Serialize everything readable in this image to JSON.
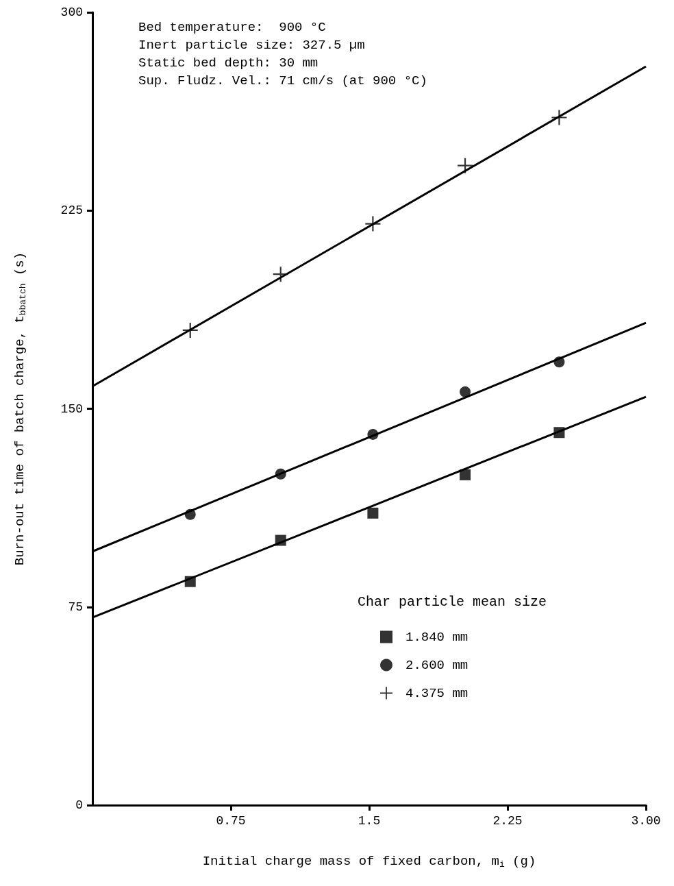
{
  "chart_data": {
    "type": "scatter",
    "xlabel": "Initial charge mass of fixed carbon, m$_{i}$ (g)",
    "ylabel": "Burn-out time of batch charge, t$_{b}$$_{batch}$ (s)",
    "legend_title": "Char particle mean size",
    "annotations": [
      "Bed temperature:  900 °C",
      "Inert particle size: 327.5 µm",
      "Static bed depth: 30 mm",
      "Sup. Fludz. Vel.: 71 cm/s (at 900 °C)"
    ],
    "xlim": [
      0,
      3
    ],
    "xticks": [
      0.75,
      1.5,
      2.25,
      {
        "value": 3,
        "label": "3.00"
      }
    ],
    "ylim": [
      0,
      300
    ],
    "yticks": [
      0,
      75,
      150,
      225,
      300
    ],
    "grid": false,
    "legend": "bottom right",
    "series": [
      {
        "name": "1.840 mm",
        "color": "#000000",
        "marker": "square",
        "x": [
          0.53,
          1.02,
          1.52,
          2.02,
          2.53
        ],
        "values": [
          84.6,
          100.2,
          110.5,
          125,
          141
        ]
      },
      {
        "name": "2.600 mm",
        "color": "#000000",
        "marker": "circle",
        "x": [
          0.53,
          1.02,
          1.52,
          2.02,
          2.53
        ],
        "values": [
          110,
          125.3,
          140.3,
          156.4,
          167.7
        ]
      },
      {
        "name": "4.375 mm",
        "color": "#000000",
        "marker": "cross",
        "x": [
          0.53,
          1.02,
          1.52,
          2.02,
          2.53
        ],
        "values": [
          179.7,
          200.9,
          220,
          242,
          260.2
        ]
      },
      {
        "type": "line",
        "color": "#000000",
        "marker": "none",
        "x": [
          0,
          3
        ],
        "values": [
          71,
          154.5
        ]
      },
      {
        "type": "line",
        "color": "#000000",
        "marker": "none",
        "x": [
          0,
          3
        ],
        "values": [
          96,
          182.5
        ]
      },
      {
        "type": "line",
        "color": "#000000",
        "marker": "none",
        "x": [
          0,
          3
        ],
        "values": [
          158.5,
          279.5
        ]
      }
    ]
  }
}
